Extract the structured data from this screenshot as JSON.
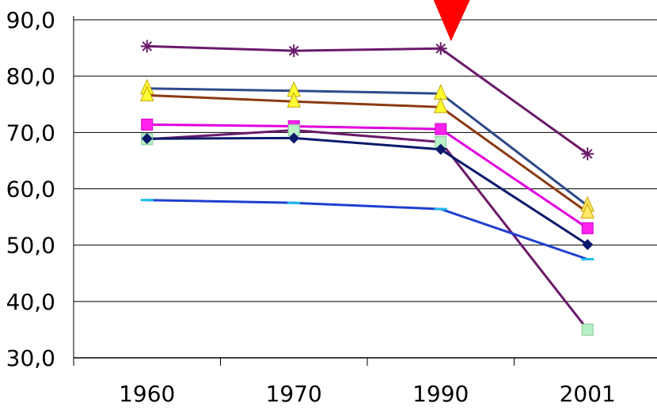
{
  "chart_data": {
    "type": "line",
    "categories": [
      "1960",
      "1970",
      "1990",
      "2001"
    ],
    "ylim": [
      30,
      90
    ],
    "yticks": [
      "30,0",
      "40,0",
      "50,0",
      "60,0",
      "70,0",
      "80,0",
      "90,0"
    ],
    "grid": true,
    "legend": "none",
    "series": [
      {
        "values": [
          85.3,
          84.5,
          84.9,
          66.2
        ],
        "color": "#6a1a6a",
        "marker": "asterisk"
      },
      {
        "values": [
          77.8,
          77.4,
          76.9,
          57.0
        ],
        "color": "#2e4a8a",
        "marker": "triangle"
      },
      {
        "values": [
          76.6,
          75.5,
          74.5,
          55.8
        ],
        "color": "#8b3a12",
        "marker": "triangle"
      },
      {
        "values": [
          71.4,
          71.1,
          70.6,
          53.0
        ],
        "color": "#e000e0",
        "marker": "square"
      },
      {
        "values": [
          68.8,
          70.4,
          68.3,
          35.0
        ],
        "color": "#6a1a6a",
        "marker": "square-lightgreen"
      },
      {
        "values": [
          68.9,
          69.0,
          67.0,
          50.1
        ],
        "color": "#0a1a6a",
        "marker": "diamond"
      },
      {
        "values": [
          58.0,
          57.5,
          56.4,
          47.5
        ],
        "color": "#1f3fd0",
        "marker": "dash"
      }
    ],
    "annotation": {
      "type": "arrow-down",
      "color": "#ff0000",
      "at_category": "1990"
    }
  }
}
